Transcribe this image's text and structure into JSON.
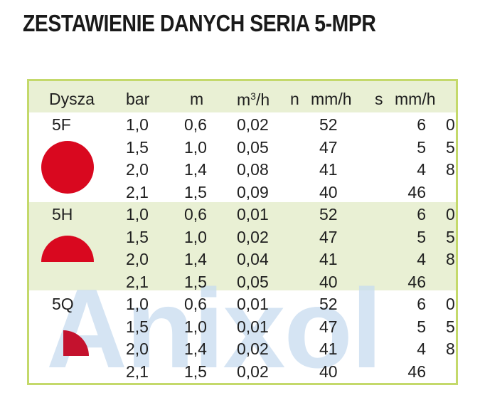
{
  "title": "ZESTAWIENIE DANYCH SERIA 5-MPR",
  "watermark": "Anixol",
  "headers": {
    "dysza": "Dysza",
    "bar": "bar",
    "m": "m",
    "flow_base": "m",
    "flow_sup": "3",
    "flow_unit": "/h",
    "n": "n",
    "n_unit": "mm/h",
    "s": "s",
    "s_unit": "mm/h"
  },
  "colors": {
    "nozzle": "#d9081f",
    "border": "#c4d96b",
    "band": "#e9f0d4",
    "watermark": "#c7dcf0"
  },
  "groups": [
    {
      "nozzle": "5F",
      "shape": "full-circle-icon",
      "rows": [
        {
          "bar": "1,0",
          "m": "0,6",
          "flow": "0,02",
          "n": "52",
          "s": "6",
          "x": "0"
        },
        {
          "bar": "1,5",
          "m": "1,0",
          "flow": "0,05",
          "n": "47",
          "s": "5",
          "x": "5"
        },
        {
          "bar": "2,0",
          "m": "1,4",
          "flow": "0,08",
          "n": "41",
          "s": "4",
          "x": "8"
        },
        {
          "bar": "2,1",
          "m": "1,5",
          "flow": "0,09",
          "n": "40",
          "s": "46",
          "x": ""
        }
      ]
    },
    {
      "nozzle": "5H",
      "shape": "half-circle-icon",
      "rows": [
        {
          "bar": "1,0",
          "m": "0,6",
          "flow": "0,01",
          "n": "52",
          "s": "6",
          "x": "0"
        },
        {
          "bar": "1,5",
          "m": "1,0",
          "flow": "0,02",
          "n": "47",
          "s": "5",
          "x": "5"
        },
        {
          "bar": "2,0",
          "m": "1,4",
          "flow": "0,04",
          "n": "41",
          "s": "4",
          "x": "8"
        },
        {
          "bar": "2,1",
          "m": "1,5",
          "flow": "0,05",
          "n": "40",
          "s": "46",
          "x": ""
        }
      ]
    },
    {
      "nozzle": "5Q",
      "shape": "quarter-circle-icon",
      "rows": [
        {
          "bar": "1,0",
          "m": "0,6",
          "flow": "0,01",
          "n": "52",
          "s": "6",
          "x": "0"
        },
        {
          "bar": "1,5",
          "m": "1,0",
          "flow": "0,01",
          "n": "47",
          "s": "5",
          "x": "5"
        },
        {
          "bar": "2,0",
          "m": "1,4",
          "flow": "0,02",
          "n": "41",
          "s": "4",
          "x": "8"
        },
        {
          "bar": "2,1",
          "m": "1,5",
          "flow": "0,02",
          "n": "40",
          "s": "46",
          "x": ""
        }
      ]
    }
  ]
}
